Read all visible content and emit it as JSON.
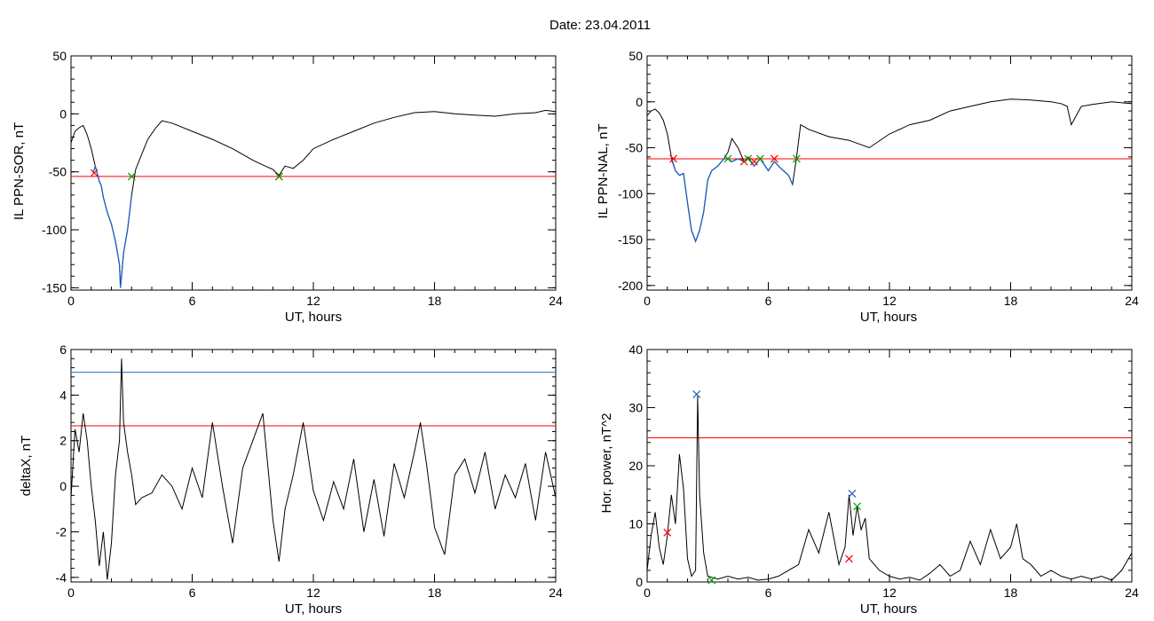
{
  "figure": {
    "title": "Date:  23.04.2011"
  },
  "chart_data": [
    {
      "type": "line",
      "ylabel": "IL PPN-SOR, nT",
      "xlabel": "UT, hours",
      "xlim": [
        0,
        24
      ],
      "ylim": [
        -152,
        50
      ],
      "xticks": [
        0,
        6,
        12,
        18,
        24
      ],
      "yticks": [
        50,
        0,
        -50,
        -100,
        -150
      ],
      "hlines": [
        {
          "y": -54,
          "color": "#ff0000"
        }
      ],
      "series": [
        {
          "color": "#000000",
          "width": 1,
          "x": [
            0,
            0.2,
            0.4,
            0.6,
            0.8,
            1.0,
            1.2,
            1.4,
            1.5,
            1.6,
            1.8,
            2.0,
            2.2,
            2.4,
            2.45,
            2.5,
            2.6,
            2.8,
            3.0,
            3.2,
            3.5,
            3.8,
            4.2,
            4.5,
            5,
            6,
            7,
            8,
            9,
            9.5,
            10,
            10.3,
            10.6,
            11,
            11.5,
            12,
            13,
            14,
            15,
            16,
            17,
            18,
            19,
            20,
            21,
            22,
            23,
            23.5,
            24
          ],
          "y": [
            -25,
            -15,
            -12,
            -10,
            -18,
            -30,
            -45,
            -58,
            -62,
            -72,
            -85,
            -95,
            -110,
            -130,
            -150,
            -140,
            -120,
            -100,
            -70,
            -48,
            -35,
            -22,
            -12,
            -6,
            -8,
            -15,
            -22,
            -30,
            -40,
            -44,
            -48,
            -53,
            -45,
            -47,
            -40,
            -30,
            -22,
            -15,
            -8,
            -3,
            1,
            2,
            0,
            -1,
            -2,
            0,
            1,
            3,
            2
          ]
        },
        {
          "color": "#1f5fbf",
          "width": 1.3,
          "x": [
            1.1,
            1.2,
            1.4,
            1.5,
            1.6,
            1.8,
            2.0,
            2.2,
            2.4,
            2.45,
            2.5,
            2.6,
            2.8,
            3.0
          ],
          "y": [
            -51,
            -45,
            -58,
            -62,
            -72,
            -85,
            -95,
            -110,
            -130,
            -150,
            -140,
            -120,
            -100,
            -70
          ]
        }
      ],
      "markers": [
        {
          "x": 1.15,
          "y": -51,
          "color": "#ff0000"
        },
        {
          "x": 3.0,
          "y": -54,
          "color": "#00a000"
        },
        {
          "x": 10.3,
          "y": -54,
          "color": "#ff0000"
        },
        {
          "x": 10.3,
          "y": -54,
          "color": "#00a000"
        }
      ]
    },
    {
      "type": "line",
      "ylabel": "IL PPN-NAL, nT",
      "xlabel": "UT, hours",
      "xlim": [
        0,
        24
      ],
      "ylim": [
        -205,
        50
      ],
      "xticks": [
        0,
        6,
        12,
        18,
        24
      ],
      "yticks": [
        50,
        0,
        -50,
        -100,
        -150,
        -200
      ],
      "hlines": [
        {
          "y": -62,
          "color": "#ff0000"
        }
      ],
      "series": [
        {
          "color": "#000000",
          "width": 1,
          "x": [
            0,
            0.2,
            0.4,
            0.6,
            0.8,
            1.0,
            1.2,
            1.4,
            1.6,
            1.8,
            2.0,
            2.2,
            2.4,
            2.6,
            2.8,
            3.0,
            3.2,
            3.5,
            3.8,
            4.0,
            4.2,
            4.5,
            4.8,
            5.0,
            5.3,
            5.6,
            6.0,
            6.3,
            6.6,
            7.0,
            7.2,
            7.4,
            7.6,
            8,
            9,
            10,
            11,
            12,
            13,
            14,
            15,
            16,
            17,
            18,
            19,
            20,
            20.5,
            20.8,
            21,
            21.5,
            22,
            23,
            24
          ],
          "y": [
            -15,
            -10,
            -8,
            -12,
            -20,
            -35,
            -60,
            -75,
            -80,
            -78,
            -110,
            -140,
            -152,
            -140,
            -120,
            -85,
            -75,
            -70,
            -62,
            -55,
            -40,
            -50,
            -65,
            -60,
            -70,
            -62,
            -75,
            -65,
            -72,
            -80,
            -90,
            -60,
            -25,
            -30,
            -38,
            -42,
            -50,
            -35,
            -25,
            -20,
            -10,
            -5,
            0,
            3,
            2,
            0,
            -2,
            -5,
            -25,
            -5,
            -3,
            0,
            -2
          ]
        },
        {
          "color": "#1f5fbf",
          "width": 1.3,
          "x": [
            1.2,
            1.4,
            1.6,
            1.8,
            2.0,
            2.2,
            2.4,
            2.6,
            2.8,
            3.0,
            3.2,
            3.5,
            3.8,
            4.0,
            4.2,
            4.5,
            4.8,
            5.0,
            5.3,
            5.6,
            6.0,
            6.3,
            6.6,
            7.0,
            7.2
          ],
          "y": [
            -62,
            -75,
            -80,
            -78,
            -110,
            -140,
            -152,
            -140,
            -120,
            -85,
            -75,
            -70,
            -62,
            -62,
            -65,
            -62,
            -65,
            -62,
            -70,
            -62,
            -75,
            -65,
            -72,
            -80,
            -90
          ]
        }
      ],
      "markers": [
        {
          "x": 1.3,
          "y": -62,
          "color": "#ff0000"
        },
        {
          "x": 4.0,
          "y": -62,
          "color": "#00a000"
        },
        {
          "x": 4.8,
          "y": -65,
          "color": "#ff0000"
        },
        {
          "x": 5.0,
          "y": -62,
          "color": "#00a000"
        },
        {
          "x": 5.3,
          "y": -65,
          "color": "#ff0000"
        },
        {
          "x": 5.6,
          "y": -62,
          "color": "#00a000"
        },
        {
          "x": 6.3,
          "y": -62,
          "color": "#ff0000"
        },
        {
          "x": 7.4,
          "y": -62,
          "color": "#00a000"
        }
      ]
    },
    {
      "type": "line",
      "ylabel": "deltaX, nT",
      "xlabel": "UT, hours",
      "xlim": [
        0,
        24
      ],
      "ylim": [
        -4.2,
        6
      ],
      "xticks": [
        0,
        6,
        12,
        18,
        24
      ],
      "yticks": [
        6,
        4,
        2,
        0,
        -2,
        -4
      ],
      "hlines": [
        {
          "y": 5.0,
          "color": "#1f6fbf"
        },
        {
          "y": 2.65,
          "color": "#ff0000"
        }
      ],
      "series": [
        {
          "color": "#000000",
          "width": 1,
          "x": [
            0,
            0.2,
            0.4,
            0.6,
            0.8,
            1.0,
            1.2,
            1.4,
            1.6,
            1.8,
            2.0,
            2.2,
            2.4,
            2.5,
            2.6,
            2.8,
            3.0,
            3.2,
            3.5,
            4,
            4.5,
            5,
            5.5,
            6,
            6.5,
            7,
            7.5,
            8,
            8.5,
            9,
            9.5,
            10,
            10.3,
            10.6,
            11,
            11.5,
            12,
            12.5,
            13,
            13.5,
            14,
            14.5,
            15,
            15.5,
            16,
            16.5,
            17,
            17.3,
            17.6,
            18,
            18.5,
            19,
            19.5,
            20,
            20.5,
            21,
            21.5,
            22,
            22.5,
            23,
            23.5,
            24
          ],
          "y": [
            -0.5,
            2.5,
            1.5,
            3.2,
            2.0,
            0,
            -1.5,
            -3.5,
            -2.0,
            -4.1,
            -2.5,
            0.5,
            2.0,
            5.6,
            2.8,
            1.5,
            0.5,
            -0.8,
            -0.5,
            -0.3,
            0.5,
            0,
            -1.0,
            0.8,
            -0.5,
            2.8,
            0,
            -2.5,
            0.8,
            2.0,
            3.2,
            -1.5,
            -3.3,
            -1.0,
            0.5,
            2.8,
            -0.2,
            -1.5,
            0.2,
            -1.0,
            1.2,
            -2.0,
            0.3,
            -2.2,
            1.0,
            -0.5,
            1.5,
            2.8,
            1.0,
            -1.8,
            -3.0,
            0.5,
            1.2,
            -0.3,
            1.5,
            -1.0,
            0.5,
            -0.5,
            1.0,
            -1.5,
            1.5,
            -0.5
          ]
        }
      ],
      "markers": []
    },
    {
      "type": "line",
      "ylabel": "Hor. power, nT^2",
      "xlabel": "UT, hours",
      "xlim": [
        0,
        24
      ],
      "ylim": [
        0,
        40
      ],
      "xticks": [
        0,
        6,
        12,
        18,
        24
      ],
      "yticks": [
        40,
        30,
        20,
        10,
        0
      ],
      "hlines": [
        {
          "y": 24.8,
          "color": "#ff0000"
        }
      ],
      "series": [
        {
          "color": "#000000",
          "width": 1,
          "x": [
            0,
            0.2,
            0.4,
            0.6,
            0.8,
            1.0,
            1.2,
            1.4,
            1.6,
            1.8,
            2.0,
            2.2,
            2.4,
            2.5,
            2.6,
            2.8,
            3.0,
            3.5,
            4,
            4.5,
            5,
            5.5,
            6,
            6.5,
            7,
            7.5,
            8,
            8.5,
            9,
            9.5,
            9.8,
            10,
            10.2,
            10.4,
            10.6,
            10.8,
            11,
            11.5,
            12,
            12.5,
            13,
            13.5,
            14,
            14.5,
            15,
            15.5,
            16,
            16.5,
            17,
            17.5,
            18,
            18.3,
            18.6,
            19,
            19.5,
            20,
            20.5,
            21,
            21.5,
            22,
            22.5,
            23,
            23.5,
            24
          ],
          "y": [
            2,
            8,
            12,
            6,
            3,
            8,
            15,
            10,
            22,
            16,
            4,
            1,
            2,
            32,
            15,
            5,
            1,
            0.5,
            1,
            0.5,
            0.8,
            0.3,
            0.5,
            1,
            2,
            3,
            9,
            5,
            12,
            3,
            6,
            15,
            8,
            13,
            9,
            11,
            4,
            2,
            1,
            0.5,
            0.8,
            0.3,
            1.5,
            3,
            1,
            2,
            7,
            3,
            9,
            4,
            6,
            10,
            4,
            3,
            1,
            2,
            1,
            0.5,
            1,
            0.5,
            1,
            0.3,
            2,
            5
          ]
        }
      ],
      "markers": [
        {
          "x": 1.0,
          "y": 8.5,
          "color": "#ff0000"
        },
        {
          "x": 2.45,
          "y": 32.3,
          "color": "#1f5fbf"
        },
        {
          "x": 3.2,
          "y": 0.3,
          "color": "#00a000"
        },
        {
          "x": 10.0,
          "y": 4.0,
          "color": "#ff0000"
        },
        {
          "x": 10.15,
          "y": 15.2,
          "color": "#1f5fbf"
        },
        {
          "x": 10.4,
          "y": 13.0,
          "color": "#00a000"
        }
      ]
    }
  ]
}
